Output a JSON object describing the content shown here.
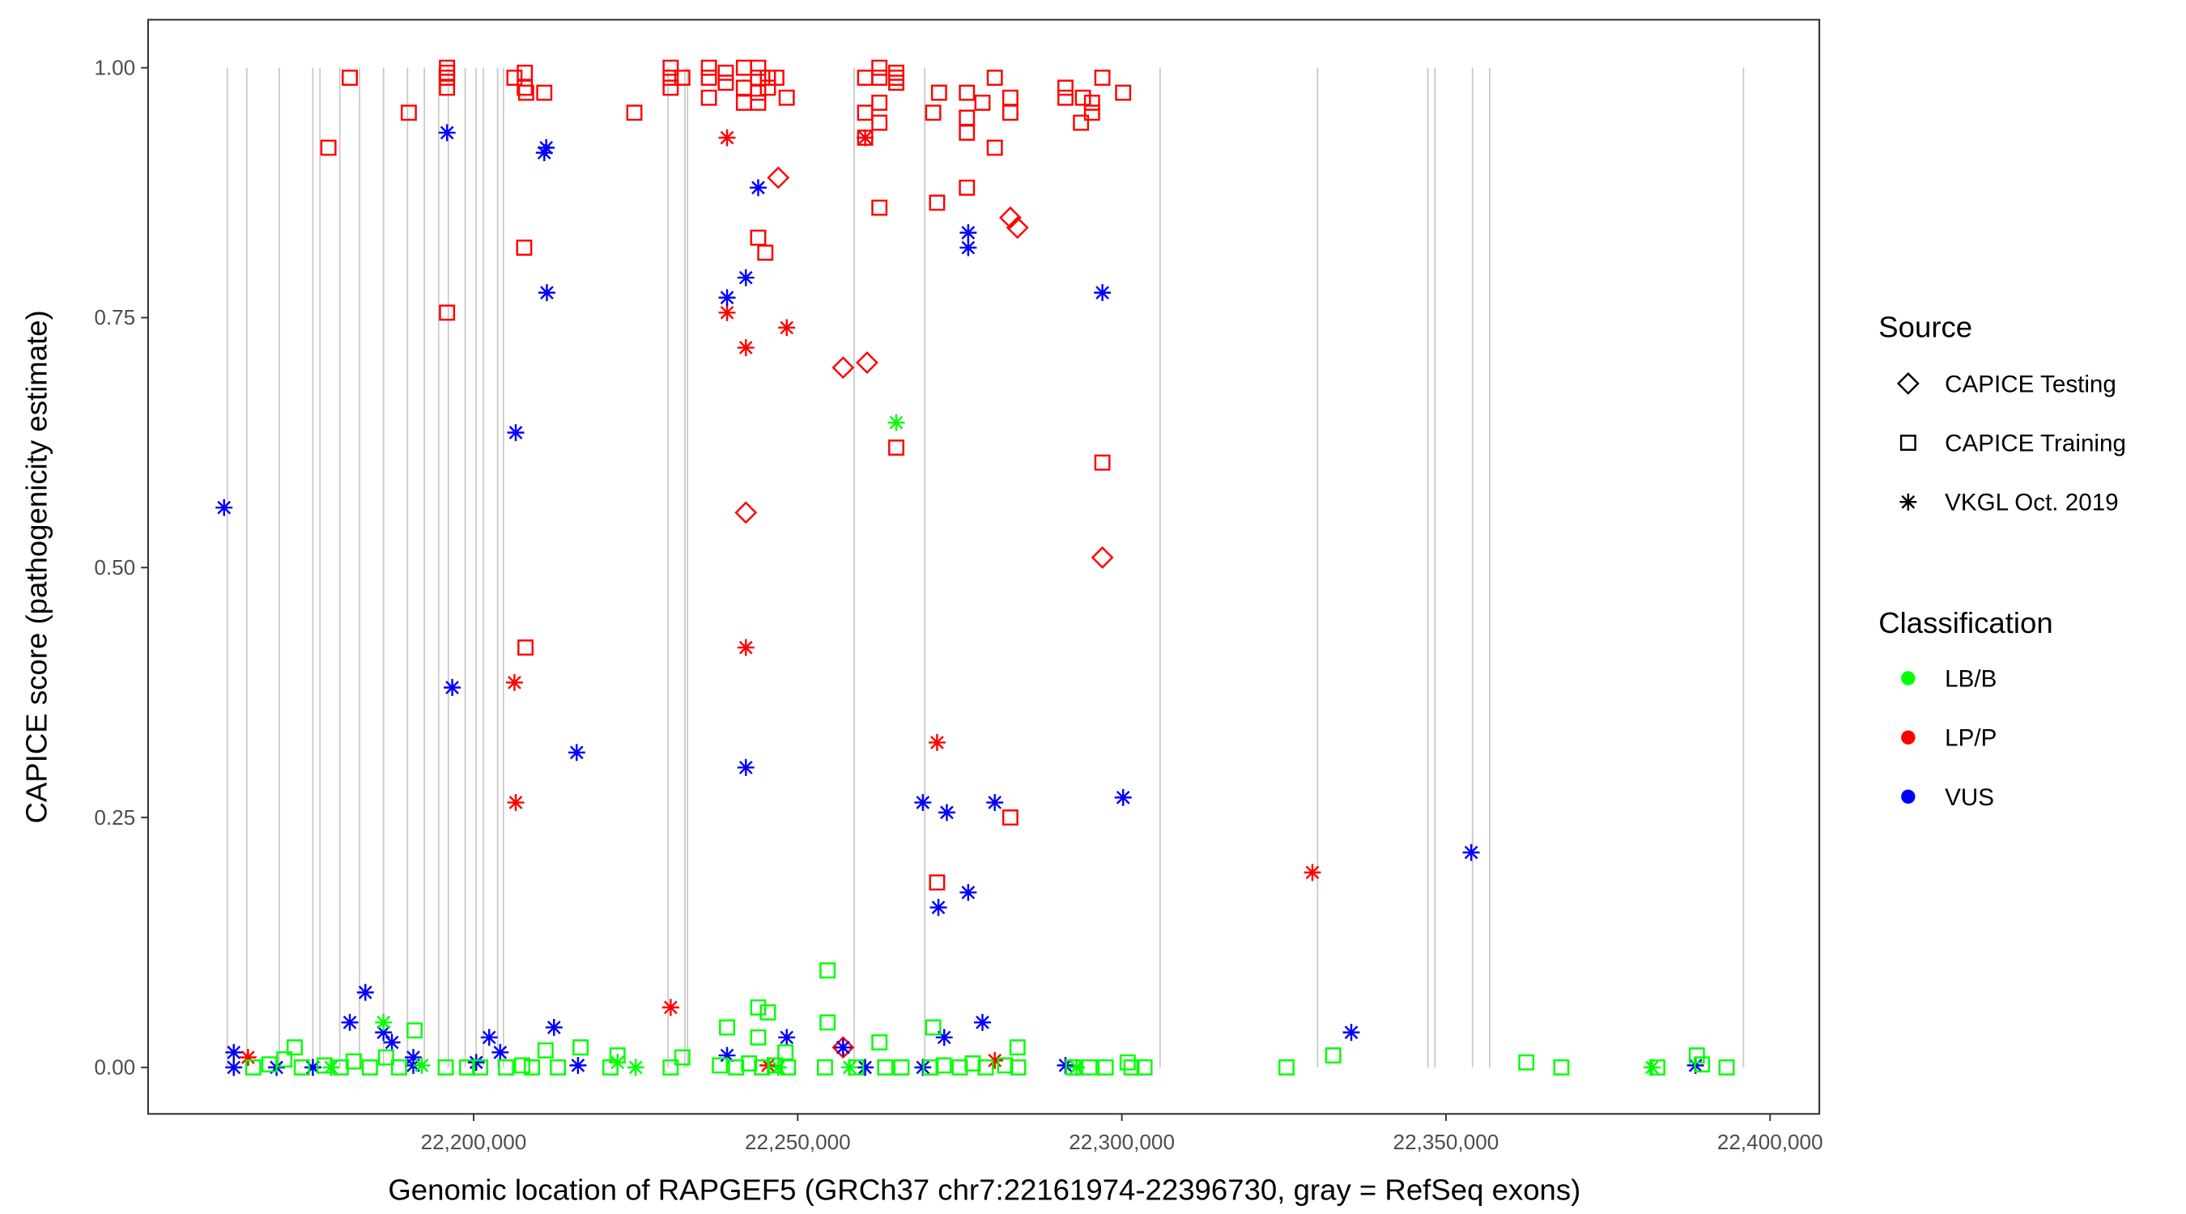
{
  "chart_data": {
    "type": "scatter",
    "xlabel": "Genomic location of RAPGEF5 (GRCh37 chr7:22161974-22396730, gray = RefSeq exons)",
    "ylabel": "CAPICE score (pathogenicity estimate)",
    "xlim": [
      22149780,
      22407600
    ],
    "ylim": [
      -0.0465,
      1.048
    ],
    "x_ticks": [
      22200000,
      22250000,
      22300000,
      22350000,
      22400000
    ],
    "x_tick_labels": [
      "22,200,000",
      "22,250,000",
      "22,300,000",
      "22,350,000",
      "22,400,000"
    ],
    "y_ticks": [
      0,
      0.25,
      0.5,
      0.75,
      1.0
    ],
    "y_tick_labels": [
      "0.00",
      "0.25",
      "0.50",
      "0.75",
      "1.00"
    ],
    "grid": false,
    "legend_placement": "right",
    "legend": {
      "source_title": "Source",
      "sources": [
        {
          "key": "T",
          "label": "CAPICE Testing",
          "shape": "diamond"
        },
        {
          "key": "R",
          "label": "CAPICE Training",
          "shape": "square"
        },
        {
          "key": "V",
          "label": "VKGL Oct. 2019",
          "shape": "asterisk"
        }
      ],
      "class_title": "Classification",
      "classes": [
        {
          "key": "B",
          "label": "LB/B",
          "color": "#00ff00"
        },
        {
          "key": "P",
          "label": "LP/P",
          "color": "#ff0000"
        },
        {
          "key": "U",
          "label": "VUS",
          "color": "#0000ff"
        }
      ]
    },
    "exons": [
      22162000,
      22165000,
      22170000,
      22175200,
      22176300,
      22179350,
      22182400,
      22186100,
      22189800,
      22192400,
      22194600,
      22196100,
      22198700,
      22200400,
      22201500,
      22203700,
      22204600,
      22230000,
      22232600,
      22233000,
      22258700,
      22269600,
      22305900,
      22330200,
      22347200,
      22348300,
      22354100,
      22356750,
      22395900
    ],
    "point_fields": [
      "position",
      "score",
      "source",
      "classification"
    ],
    "points": [
      [
        22177600,
        0.92,
        "R",
        "P"
      ],
      [
        22180900,
        0.99,
        "R",
        "P"
      ],
      [
        22190000,
        0.955,
        "R",
        "P"
      ],
      [
        22195900,
        1.0,
        "R",
        "P"
      ],
      [
        22195900,
        0.995,
        "R",
        "P"
      ],
      [
        22195900,
        0.99,
        "R",
        "P"
      ],
      [
        22195900,
        0.98,
        "R",
        "P"
      ],
      [
        22195900,
        0.755,
        "R",
        "P"
      ],
      [
        22206300,
        0.99,
        "R",
        "P"
      ],
      [
        22207900,
        0.995,
        "R",
        "P"
      ],
      [
        22207900,
        0.98,
        "R",
        "P"
      ],
      [
        22208100,
        0.975,
        "R",
        "P"
      ],
      [
        22210900,
        0.975,
        "R",
        "P"
      ],
      [
        22207800,
        0.82,
        "R",
        "P"
      ],
      [
        22208000,
        0.42,
        "R",
        "P"
      ],
      [
        22224800,
        0.955,
        "R",
        "P"
      ],
      [
        22230400,
        1.0,
        "R",
        "P"
      ],
      [
        22230400,
        0.99,
        "R",
        "P"
      ],
      [
        22230400,
        0.98,
        "R",
        "P"
      ],
      [
        22232200,
        0.99,
        "R",
        "P"
      ],
      [
        22236300,
        1.0,
        "R",
        "P"
      ],
      [
        22236300,
        0.99,
        "R",
        "P"
      ],
      [
        22236300,
        0.97,
        "R",
        "P"
      ],
      [
        22238900,
        0.995,
        "R",
        "P"
      ],
      [
        22238900,
        0.985,
        "R",
        "P"
      ],
      [
        22241700,
        1.0,
        "R",
        "P"
      ],
      [
        22241700,
        0.98,
        "R",
        "P"
      ],
      [
        22241700,
        0.965,
        "R",
        "P"
      ],
      [
        22243900,
        1.0,
        "R",
        "P"
      ],
      [
        22243900,
        0.99,
        "R",
        "P"
      ],
      [
        22243900,
        0.975,
        "R",
        "P"
      ],
      [
        22243900,
        0.965,
        "R",
        "P"
      ],
      [
        22245400,
        0.99,
        "R",
        "P"
      ],
      [
        22245400,
        0.98,
        "R",
        "P"
      ],
      [
        22246700,
        0.99,
        "R",
        "P"
      ],
      [
        22248300,
        0.97,
        "R",
        "P"
      ],
      [
        22243900,
        0.83,
        "R",
        "P"
      ],
      [
        22245000,
        0.815,
        "R",
        "P"
      ],
      [
        22260400,
        0.99,
        "R",
        "P"
      ],
      [
        22260400,
        0.955,
        "R",
        "P"
      ],
      [
        22260400,
        0.93,
        "R",
        "P"
      ],
      [
        22262600,
        1.0,
        "R",
        "P"
      ],
      [
        22262600,
        0.99,
        "R",
        "P"
      ],
      [
        22262600,
        0.965,
        "R",
        "P"
      ],
      [
        22262600,
        0.945,
        "R",
        "P"
      ],
      [
        22265200,
        0.995,
        "R",
        "P"
      ],
      [
        22265200,
        0.99,
        "R",
        "P"
      ],
      [
        22265200,
        0.985,
        "R",
        "P"
      ],
      [
        22262600,
        0.86,
        "R",
        "P"
      ],
      [
        22265200,
        0.62,
        "R",
        "P"
      ],
      [
        22270900,
        0.955,
        "R",
        "P"
      ],
      [
        22271800,
        0.975,
        "R",
        "P"
      ],
      [
        22276100,
        0.975,
        "R",
        "P"
      ],
      [
        22276100,
        0.95,
        "R",
        "P"
      ],
      [
        22276100,
        0.935,
        "R",
        "P"
      ],
      [
        22278500,
        0.965,
        "R",
        "P"
      ],
      [
        22280400,
        0.99,
        "R",
        "P"
      ],
      [
        22280400,
        0.92,
        "R",
        "P"
      ],
      [
        22282800,
        0.97,
        "R",
        "P"
      ],
      [
        22282800,
        0.955,
        "R",
        "P"
      ],
      [
        22276100,
        0.88,
        "R",
        "P"
      ],
      [
        22271500,
        0.865,
        "R",
        "P"
      ],
      [
        22282800,
        0.25,
        "R",
        "P"
      ],
      [
        22271500,
        0.185,
        "R",
        "P"
      ],
      [
        22291300,
        0.98,
        "R",
        "P"
      ],
      [
        22291300,
        0.97,
        "R",
        "P"
      ],
      [
        22293700,
        0.945,
        "R",
        "P"
      ],
      [
        22294000,
        0.97,
        "R",
        "P"
      ],
      [
        22295400,
        0.965,
        "R",
        "P"
      ],
      [
        22295400,
        0.955,
        "R",
        "P"
      ],
      [
        22297000,
        0.99,
        "R",
        "P"
      ],
      [
        22300200,
        0.975,
        "R",
        "P"
      ],
      [
        22297000,
        0.605,
        "R",
        "P"
      ],
      [
        22247000,
        0.89,
        "T",
        "P"
      ],
      [
        22282800,
        0.85,
        "T",
        "P"
      ],
      [
        22283900,
        0.84,
        "T",
        "P"
      ],
      [
        22257000,
        0.7,
        "T",
        "P"
      ],
      [
        22260700,
        0.705,
        "T",
        "P"
      ],
      [
        22242000,
        0.555,
        "T",
        "P"
      ],
      [
        22297000,
        0.51,
        "T",
        "P"
      ],
      [
        22257000,
        0.02,
        "T",
        "P"
      ],
      [
        22239100,
        0.93,
        "V",
        "P"
      ],
      [
        22260400,
        0.93,
        "V",
        "P"
      ],
      [
        22239100,
        0.755,
        "V",
        "P"
      ],
      [
        22242000,
        0.72,
        "V",
        "P"
      ],
      [
        22248300,
        0.74,
        "V",
        "P"
      ],
      [
        22242000,
        0.42,
        "V",
        "P"
      ],
      [
        22206300,
        0.385,
        "V",
        "P"
      ],
      [
        22206500,
        0.265,
        "V",
        "P"
      ],
      [
        22271500,
        0.325,
        "V",
        "P"
      ],
      [
        22230400,
        0.06,
        "V",
        "P"
      ],
      [
        22329400,
        0.195,
        "V",
        "P"
      ],
      [
        22165200,
        0.01,
        "V",
        "P"
      ],
      [
        22245400,
        0.002,
        "V",
        "P"
      ],
      [
        22280400,
        0.007,
        "V",
        "P"
      ],
      [
        22257000,
        0.02,
        "V",
        "P"
      ],
      [
        22161500,
        0.56,
        "V",
        "U"
      ],
      [
        22195900,
        0.935,
        "V",
        "U"
      ],
      [
        22210900,
        0.915,
        "V",
        "U"
      ],
      [
        22211200,
        0.92,
        "V",
        "U"
      ],
      [
        22211300,
        0.775,
        "V",
        "U"
      ],
      [
        22206500,
        0.635,
        "V",
        "U"
      ],
      [
        22196700,
        0.38,
        "V",
        "U"
      ],
      [
        22215900,
        0.315,
        "V",
        "U"
      ],
      [
        22243900,
        0.88,
        "V",
        "U"
      ],
      [
        22239100,
        0.77,
        "V",
        "U"
      ],
      [
        22242000,
        0.79,
        "V",
        "U"
      ],
      [
        22242000,
        0.3,
        "V",
        "U"
      ],
      [
        22276300,
        0.835,
        "V",
        "U"
      ],
      [
        22276300,
        0.82,
        "V",
        "U"
      ],
      [
        22297000,
        0.775,
        "V",
        "U"
      ],
      [
        22269300,
        0.265,
        "V",
        "U"
      ],
      [
        22273000,
        0.255,
        "V",
        "U"
      ],
      [
        22280400,
        0.265,
        "V",
        "U"
      ],
      [
        22300200,
        0.27,
        "V",
        "U"
      ],
      [
        22276300,
        0.175,
        "V",
        "U"
      ],
      [
        22271700,
        0.16,
        "V",
        "U"
      ],
      [
        22353900,
        0.215,
        "V",
        "U"
      ],
      [
        22335400,
        0.035,
        "V",
        "U"
      ],
      [
        22388500,
        0.002,
        "V",
        "U"
      ],
      [
        22278500,
        0.045,
        "V",
        "U"
      ],
      [
        22272600,
        0.03,
        "V",
        "U"
      ],
      [
        22183300,
        0.075,
        "V",
        "U"
      ],
      [
        22180900,
        0.045,
        "V",
        "U"
      ],
      [
        22186100,
        0.035,
        "V",
        "U"
      ],
      [
        22187400,
        0.025,
        "V",
        "U"
      ],
      [
        22163000,
        0.015,
        "V",
        "U"
      ],
      [
        22163000,
        0.0,
        "V",
        "U"
      ],
      [
        22202400,
        0.03,
        "V",
        "U"
      ],
      [
        22212400,
        0.04,
        "V",
        "U"
      ],
      [
        22239100,
        0.012,
        "V",
        "U"
      ],
      [
        22248300,
        0.03,
        "V",
        "U"
      ],
      [
        22257000,
        0.02,
        "V",
        "U"
      ],
      [
        22260400,
        0.0,
        "V",
        "U"
      ],
      [
        22269300,
        0.0,
        "V",
        "U"
      ],
      [
        22291300,
        0.002,
        "V",
        "U"
      ],
      [
        22216100,
        0.002,
        "V",
        "U"
      ],
      [
        22190700,
        0.01,
        "V",
        "U"
      ],
      [
        22175200,
        0.0,
        "V",
        "U"
      ],
      [
        22169600,
        0.0,
        "V",
        "U"
      ],
      [
        22204100,
        0.015,
        "V",
        "U"
      ],
      [
        22200400,
        0.005,
        "V",
        "U"
      ],
      [
        22190700,
        0.002,
        "V",
        "U"
      ],
      [
        22254600,
        0.097,
        "R",
        "B"
      ],
      [
        22254600,
        0.045,
        "R",
        "B"
      ],
      [
        22243900,
        0.06,
        "R",
        "B"
      ],
      [
        22245400,
        0.055,
        "R",
        "B"
      ],
      [
        22239100,
        0.04,
        "R",
        "B"
      ],
      [
        22262600,
        0.025,
        "R",
        "B"
      ],
      [
        22270900,
        0.04,
        "R",
        "B"
      ],
      [
        22283900,
        0.02,
        "R",
        "B"
      ],
      [
        22362400,
        0.005,
        "R",
        "B"
      ],
      [
        22367800,
        0.0,
        "R",
        "B"
      ],
      [
        22332600,
        0.012,
        "R",
        "B"
      ],
      [
        22325400,
        0.0,
        "R",
        "B"
      ],
      [
        22382600,
        0.0,
        "R",
        "B"
      ],
      [
        22388700,
        0.012,
        "R",
        "B"
      ],
      [
        22393300,
        0.0,
        "R",
        "B"
      ],
      [
        22389500,
        0.003,
        "R",
        "B"
      ],
      [
        22172400,
        0.02,
        "R",
        "B"
      ],
      [
        22190900,
        0.037,
        "R",
        "B"
      ],
      [
        22216500,
        0.02,
        "R",
        "B"
      ],
      [
        22211100,
        0.017,
        "R",
        "B"
      ],
      [
        22232200,
        0.01,
        "R",
        "B"
      ],
      [
        22230400,
        0.0,
        "R",
        "B"
      ],
      [
        22195700,
        0.0,
        "R",
        "B"
      ],
      [
        22221100,
        0.0,
        "R",
        "B"
      ],
      [
        22222200,
        0.012,
        "R",
        "B"
      ],
      [
        22248100,
        0.015,
        "R",
        "B"
      ],
      [
        22300900,
        0.005,
        "R",
        "B"
      ],
      [
        22243900,
        0.03,
        "R",
        "B"
      ],
      [
        22166000,
        0.0,
        "R",
        "B"
      ],
      [
        22168500,
        0.003,
        "R",
        "B"
      ],
      [
        22170800,
        0.008,
        "R",
        "B"
      ],
      [
        22173500,
        0.0,
        "R",
        "B"
      ],
      [
        22177000,
        0.002,
        "R",
        "B"
      ],
      [
        22179500,
        0.0,
        "R",
        "B"
      ],
      [
        22181500,
        0.006,
        "R",
        "B"
      ],
      [
        22184000,
        0.0,
        "R",
        "B"
      ],
      [
        22186500,
        0.01,
        "R",
        "B"
      ],
      [
        22188500,
        0.0,
        "R",
        "B"
      ],
      [
        22199000,
        0.0,
        "R",
        "B"
      ],
      [
        22201000,
        0.0,
        "R",
        "B"
      ],
      [
        22205000,
        0.0,
        "R",
        "B"
      ],
      [
        22207500,
        0.002,
        "R",
        "B"
      ],
      [
        22209000,
        0.0,
        "R",
        "B"
      ],
      [
        22213000,
        0.0,
        "R",
        "B"
      ],
      [
        22238000,
        0.002,
        "R",
        "B"
      ],
      [
        22240500,
        0.0,
        "R",
        "B"
      ],
      [
        22242500,
        0.004,
        "R",
        "B"
      ],
      [
        22244500,
        0.0,
        "R",
        "B"
      ],
      [
        22246500,
        0.002,
        "R",
        "B"
      ],
      [
        22248500,
        0.0,
        "R",
        "B"
      ],
      [
        22254200,
        0.0,
        "R",
        "B"
      ],
      [
        22259000,
        0.0,
        "R",
        "B"
      ],
      [
        22263500,
        0.0,
        "R",
        "B"
      ],
      [
        22266000,
        0.0,
        "R",
        "B"
      ],
      [
        22270500,
        0.0,
        "R",
        "B"
      ],
      [
        22272500,
        0.002,
        "R",
        "B"
      ],
      [
        22275000,
        0.0,
        "R",
        "B"
      ],
      [
        22277000,
        0.004,
        "R",
        "B"
      ],
      [
        22279000,
        0.0,
        "R",
        "B"
      ],
      [
        22282000,
        0.002,
        "R",
        "B"
      ],
      [
        22284000,
        0.0,
        "R",
        "B"
      ],
      [
        22292500,
        0.0,
        "R",
        "B"
      ],
      [
        22295000,
        0.0,
        "R",
        "B"
      ],
      [
        22297500,
        0.0,
        "R",
        "B"
      ],
      [
        22301500,
        0.0,
        "R",
        "B"
      ],
      [
        22303500,
        0.0,
        "R",
        "B"
      ],
      [
        22265200,
        0.645,
        "V",
        "B"
      ],
      [
        22186100,
        0.045,
        "V",
        "B"
      ],
      [
        22225000,
        0.0,
        "V",
        "B"
      ],
      [
        22381800,
        0.0,
        "V",
        "B"
      ],
      [
        22222200,
        0.005,
        "V",
        "B"
      ],
      [
        22178000,
        0.0,
        "V",
        "B"
      ],
      [
        22192000,
        0.002,
        "V",
        "B"
      ],
      [
        22247000,
        0.0,
        "V",
        "B"
      ],
      [
        22258000,
        0.0,
        "V",
        "B"
      ],
      [
        22293000,
        0.0,
        "V",
        "B"
      ]
    ]
  }
}
